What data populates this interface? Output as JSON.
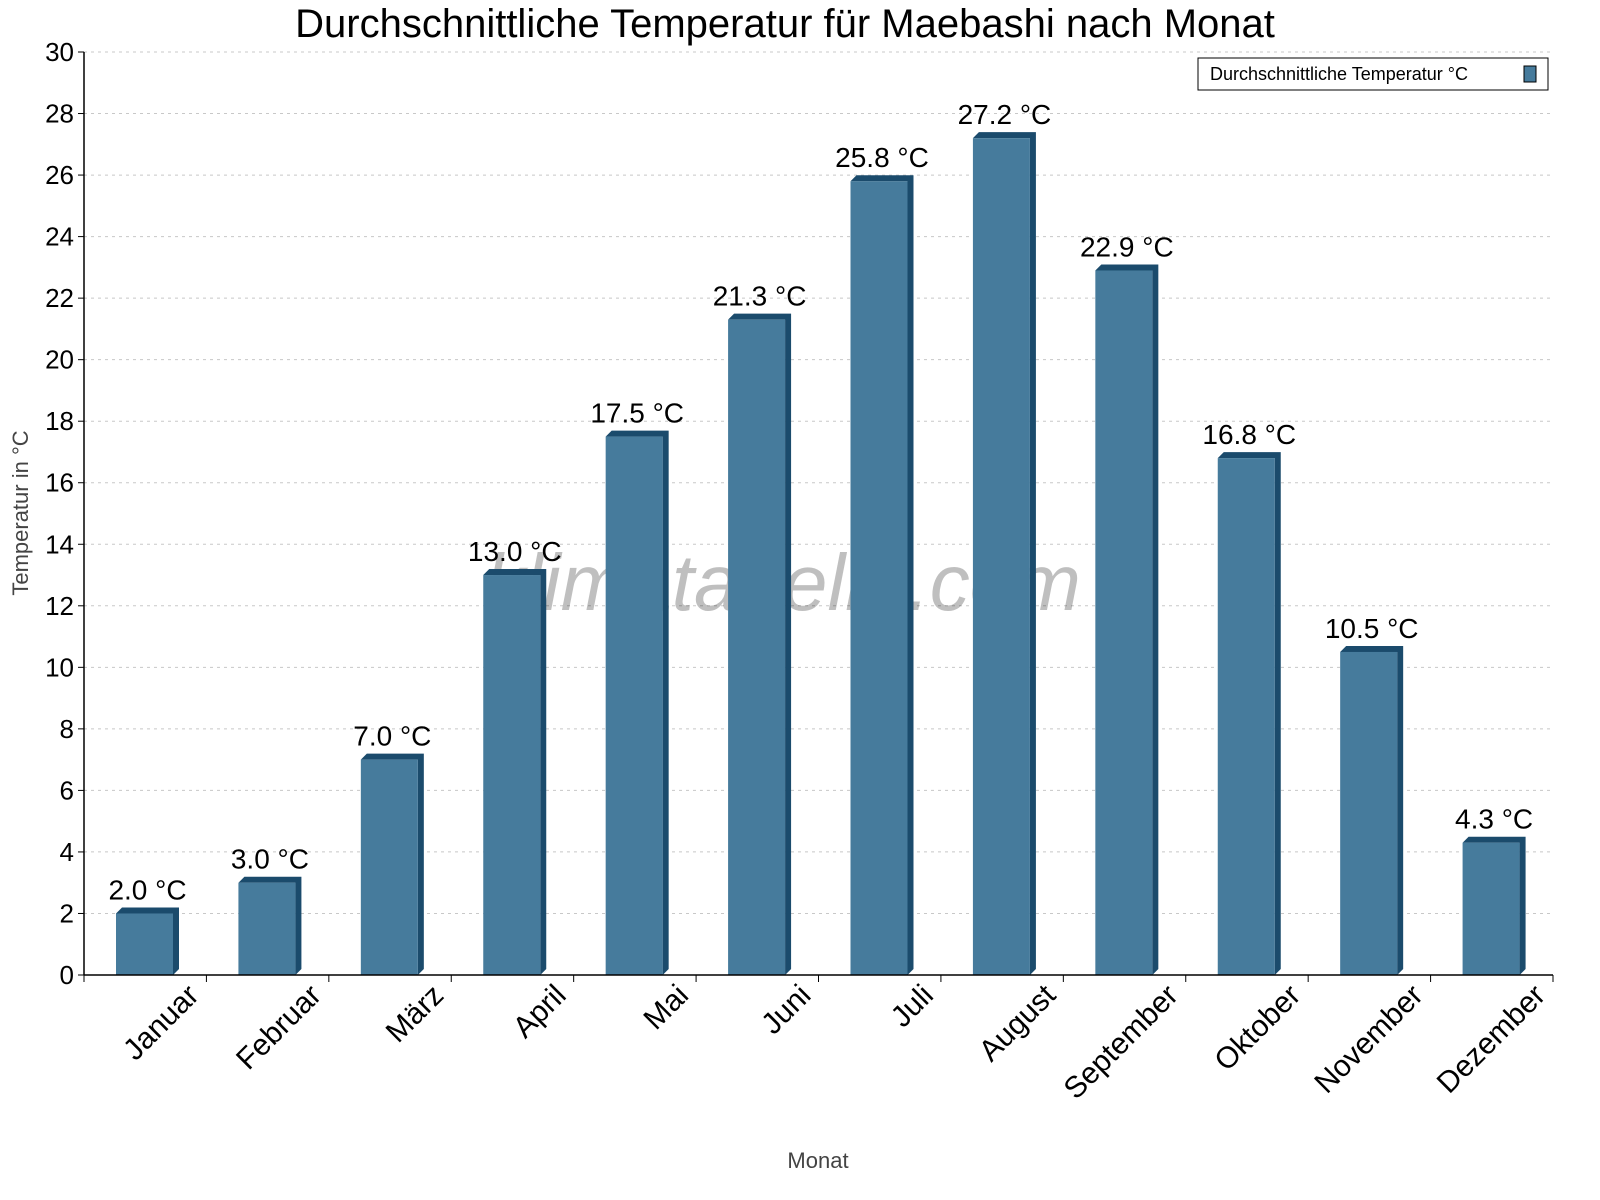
{
  "chart_data": {
    "type": "bar",
    "title": "Durchschnittliche Temperatur für Maebashi nach Monat",
    "xlabel": "Monat",
    "ylabel": "Temperatur in °C",
    "ylim": [
      0,
      30
    ],
    "yticks": [
      0,
      2,
      4,
      6,
      8,
      10,
      12,
      14,
      16,
      18,
      20,
      22,
      24,
      26,
      28,
      30
    ],
    "grid": true,
    "legend": {
      "position": "top-right",
      "label": "Durchschnittliche Temperatur °C"
    },
    "categories": [
      "Januar",
      "Februar",
      "März",
      "April",
      "Mai",
      "Juni",
      "Juli",
      "August",
      "September",
      "Oktober",
      "November",
      "Dezember"
    ],
    "series": [
      {
        "name": "Durchschnittliche Temperatur °C",
        "values": [
          2.0,
          3.0,
          7.0,
          13.0,
          17.5,
          21.3,
          25.8,
          27.2,
          22.9,
          16.8,
          10.5,
          4.3
        ]
      }
    ],
    "data_labels": [
      "2.0 °C",
      "3.0 °C",
      "7.0 °C",
      "13.0 °C",
      "17.5 °C",
      "21.3 °C",
      "25.8 °C",
      "27.2 °C",
      "22.9 °C",
      "16.8 °C",
      "10.5 °C",
      "4.3 °C"
    ],
    "watermark": "klimatabelle.com",
    "colors": {
      "bar": "#467b9c",
      "bar_dark": "#1b4b6c"
    }
  }
}
